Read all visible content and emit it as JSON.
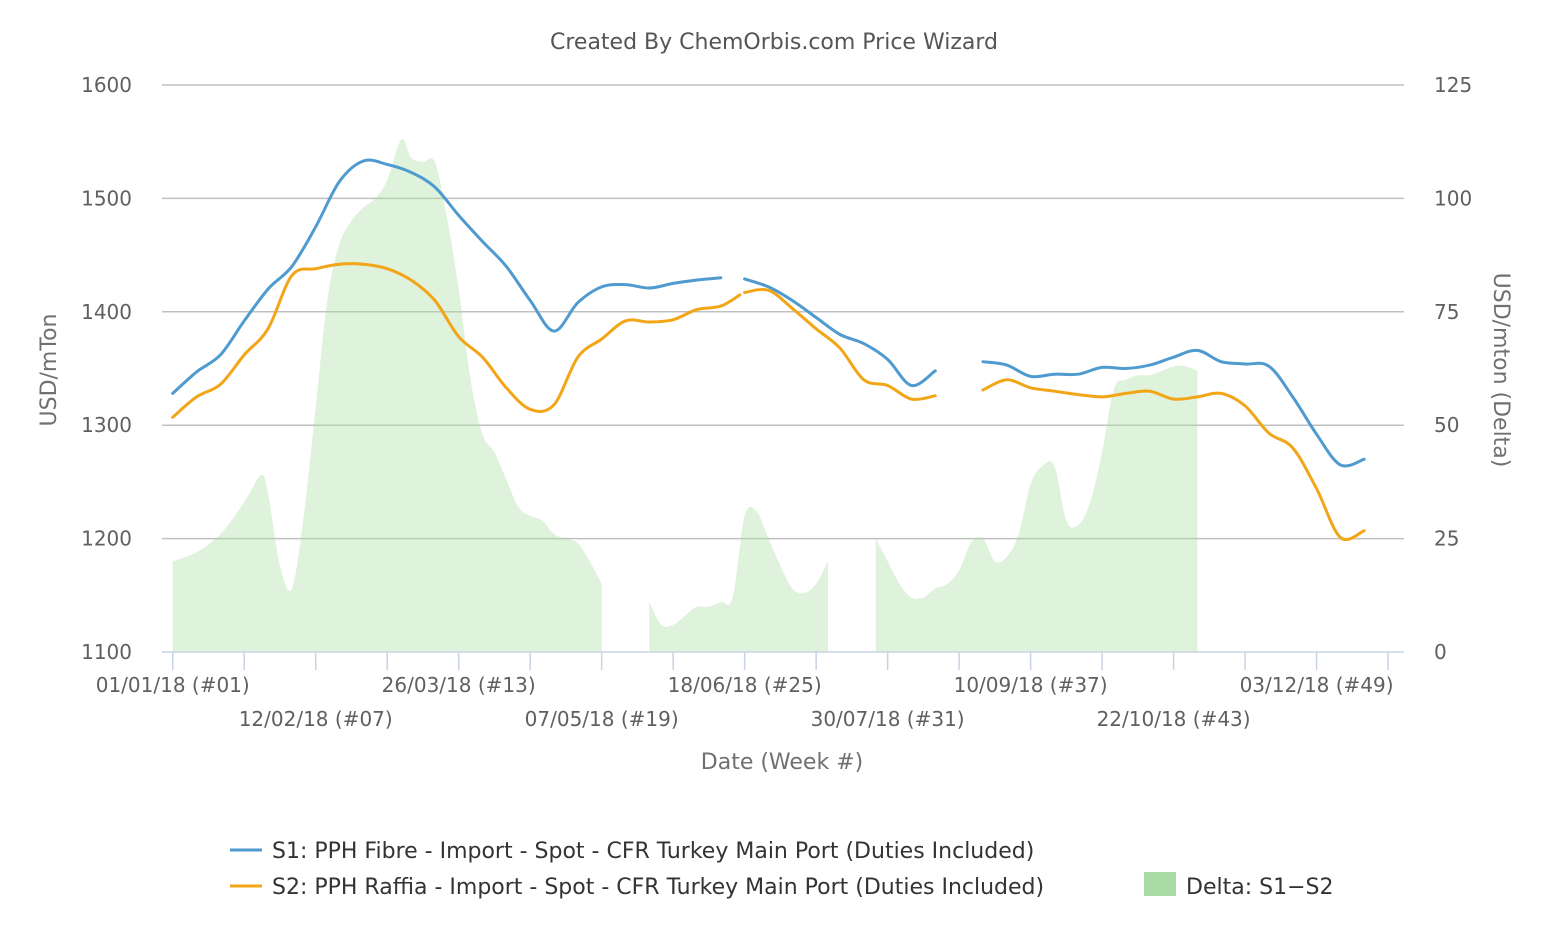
{
  "chart_data": {
    "type": "line",
    "title": "Created By ChemOrbis.com Price Wizard",
    "xlabel": "Date (Week #)",
    "ylabel_left": "USD/mTon",
    "ylabel_right": "USD/mton (Delta)",
    "ylim_left": [
      1100,
      1600
    ],
    "ylim_right": [
      0,
      125
    ],
    "y_ticks_left": [
      1100,
      1200,
      1300,
      1400,
      1500,
      1600
    ],
    "y_ticks_right": [
      0,
      25,
      50,
      75,
      100,
      125
    ],
    "grid": true,
    "legend_position": "bottom",
    "x_domain_weeks": [
      1,
      52
    ],
    "x_ticks": [
      {
        "week": 1,
        "label": "01/01/18 (#01)",
        "row": 1
      },
      {
        "week": 7,
        "label": "12/02/18 (#07)",
        "row": 2
      },
      {
        "week": 13,
        "label": "26/03/18 (#13)",
        "row": 1
      },
      {
        "week": 19,
        "label": "07/05/18 (#19)",
        "row": 2
      },
      {
        "week": 25,
        "label": "18/06/18 (#25)",
        "row": 1
      },
      {
        "week": 31,
        "label": "30/07/18 (#31)",
        "row": 2
      },
      {
        "week": 37,
        "label": "10/09/18 (#37)",
        "row": 1
      },
      {
        "week": 43,
        "label": "22/10/18 (#43)",
        "row": 2
      },
      {
        "week": 49,
        "label": "03/12/18 (#49)",
        "row": 1
      }
    ],
    "x_minor_ticks": [
      4,
      10,
      16,
      22,
      28,
      34,
      40,
      46,
      52
    ],
    "series": [
      {
        "name": "S1: PPH Fibre - Import - Spot - CFR Turkey Main Port (Duties Included)",
        "color": "#4f9acf",
        "axis": "left",
        "kind": "line",
        "segments": [
          [
            [
              1,
              1328
            ],
            [
              2,
              1347
            ],
            [
              3,
              1362
            ],
            [
              4,
              1392
            ],
            [
              5,
              1420
            ],
            [
              6,
              1440
            ],
            [
              7,
              1475
            ],
            [
              8,
              1515
            ],
            [
              9,
              1533
            ],
            [
              10,
              1530
            ],
            [
              11,
              1523
            ],
            [
              12,
              1510
            ],
            [
              13,
              1485
            ],
            [
              14,
              1462
            ],
            [
              15,
              1440
            ],
            [
              16,
              1410
            ],
            [
              17,
              1383
            ],
            [
              18,
              1408
            ],
            [
              19,
              1422
            ],
            [
              20,
              1424
            ],
            [
              21,
              1421
            ],
            [
              22,
              1425
            ],
            [
              23,
              1428
            ],
            [
              24,
              1430
            ]
          ],
          [
            [
              25,
              1429
            ],
            [
              26,
              1422
            ],
            [
              27,
              1410
            ],
            [
              28,
              1395
            ],
            [
              29,
              1380
            ],
            [
              30,
              1372
            ],
            [
              31,
              1358
            ],
            [
              32,
              1335
            ],
            [
              33,
              1348
            ]
          ],
          [
            [
              35,
              1356
            ],
            [
              36,
              1353
            ],
            [
              37,
              1343
            ],
            [
              38,
              1345
            ],
            [
              39,
              1345
            ],
            [
              40,
              1351
            ],
            [
              41,
              1350
            ],
            [
              42,
              1353
            ],
            [
              43,
              1360
            ],
            [
              44,
              1366
            ],
            [
              45,
              1356
            ],
            [
              46,
              1354
            ],
            [
              47,
              1352
            ],
            [
              48,
              1325
            ],
            [
              49,
              1292
            ],
            [
              50,
              1265
            ],
            [
              51,
              1270
            ]
          ]
        ]
      },
      {
        "name": "S2: PPH Raffia - Import - Spot - CFR Turkey Main Port (Duties Included)",
        "color": "#f2a516",
        "axis": "left",
        "kind": "line",
        "segments": [
          [
            [
              1,
              1307
            ],
            [
              2,
              1325
            ],
            [
              3,
              1336
            ],
            [
              4,
              1362
            ],
            [
              5,
              1385
            ],
            [
              6,
              1432
            ],
            [
              7,
              1438
            ],
            [
              8,
              1442
            ],
            [
              9,
              1442
            ],
            [
              10,
              1438
            ],
            [
              11,
              1428
            ],
            [
              12,
              1410
            ],
            [
              13,
              1378
            ],
            [
              14,
              1360
            ],
            [
              15,
              1333
            ],
            [
              16,
              1314
            ],
            [
              17,
              1318
            ],
            [
              18,
              1360
            ],
            [
              19,
              1376
            ],
            [
              20,
              1392
            ],
            [
              21,
              1391
            ],
            [
              22,
              1393
            ],
            [
              23,
              1402
            ],
            [
              24,
              1405
            ],
            [
              24.8,
              1415
            ]
          ],
          [
            [
              25,
              1417
            ],
            [
              26,
              1419
            ],
            [
              27,
              1403
            ],
            [
              28,
              1385
            ],
            [
              29,
              1368
            ],
            [
              30,
              1340
            ],
            [
              31,
              1335
            ],
            [
              32,
              1323
            ],
            [
              33,
              1326
            ]
          ],
          [
            [
              35,
              1331
            ],
            [
              36,
              1340
            ],
            [
              37,
              1333
            ],
            [
              38,
              1330
            ],
            [
              39,
              1327
            ],
            [
              40,
              1325
            ],
            [
              41,
              1328
            ],
            [
              42,
              1330
            ],
            [
              43,
              1323
            ],
            [
              44,
              1325
            ],
            [
              45,
              1328
            ],
            [
              46,
              1317
            ],
            [
              47,
              1293
            ],
            [
              48,
              1280
            ],
            [
              49,
              1244
            ],
            [
              50,
              1201
            ],
            [
              51,
              1207
            ]
          ]
        ]
      },
      {
        "name": "Delta: S1−S2",
        "color": "#a8dca4",
        "fill_opacity": 0.38,
        "axis": "right",
        "kind": "area",
        "segments": [
          [
            [
              1,
              20
            ],
            [
              2,
              22
            ],
            [
              3,
              26
            ],
            [
              4,
              33
            ],
            [
              4.7,
              39
            ],
            [
              5,
              35
            ],
            [
              5.5,
              19
            ],
            [
              6,
              14
            ],
            [
              6.5,
              30
            ],
            [
              7,
              54
            ],
            [
              7.5,
              78
            ],
            [
              8,
              90
            ],
            [
              8.5,
              95
            ],
            [
              9,
              98
            ],
            [
              9.5,
              100
            ],
            [
              10,
              104
            ],
            [
              10.6,
              113
            ],
            [
              11,
              109
            ],
            [
              11.5,
              108
            ],
            [
              12,
              108
            ],
            [
              12.5,
              96
            ],
            [
              13,
              80
            ],
            [
              13.5,
              60
            ],
            [
              14,
              48
            ],
            [
              14.5,
              44
            ],
            [
              15,
              38
            ],
            [
              15.5,
              32
            ],
            [
              16,
              30
            ],
            [
              16.5,
              29
            ],
            [
              17,
              26
            ],
            [
              17.5,
              25
            ],
            [
              18,
              24
            ],
            [
              18.5,
              20
            ],
            [
              19,
              15
            ]
          ],
          [
            [
              21,
              11
            ],
            [
              21.5,
              6
            ],
            [
              22,
              6
            ],
            [
              22.5,
              8
            ],
            [
              23,
              10
            ],
            [
              23.5,
              10
            ],
            [
              24,
              11
            ],
            [
              24.5,
              12
            ],
            [
              25,
              30
            ],
            [
              25.5,
              31
            ],
            [
              26,
              25
            ],
            [
              26.5,
              19
            ],
            [
              27,
              14
            ],
            [
              27.5,
              13
            ],
            [
              28,
              15
            ],
            [
              28.5,
              20
            ]
          ],
          [
            [
              30.5,
              25
            ],
            [
              31,
              20
            ],
            [
              31.5,
              15
            ],
            [
              32,
              12
            ],
            [
              32.5,
              12
            ],
            [
              33,
              14
            ],
            [
              33.5,
              15
            ],
            [
              34,
              18
            ],
            [
              34.5,
              24
            ],
            [
              35,
              25
            ],
            [
              35.5,
              20
            ],
            [
              36,
              21
            ],
            [
              36.5,
              26
            ],
            [
              37,
              37
            ],
            [
              37.5,
              41
            ],
            [
              38,
              41
            ],
            [
              38.5,
              29
            ],
            [
              39,
              28
            ],
            [
              39.5,
              33
            ],
            [
              40,
              44
            ],
            [
              40.5,
              58
            ],
            [
              41,
              60
            ],
            [
              41.5,
              61
            ],
            [
              42,
              61
            ],
            [
              42.5,
              62
            ],
            [
              43,
              63
            ],
            [
              43.5,
              63
            ],
            [
              44,
              62
            ]
          ]
        ]
      }
    ]
  }
}
